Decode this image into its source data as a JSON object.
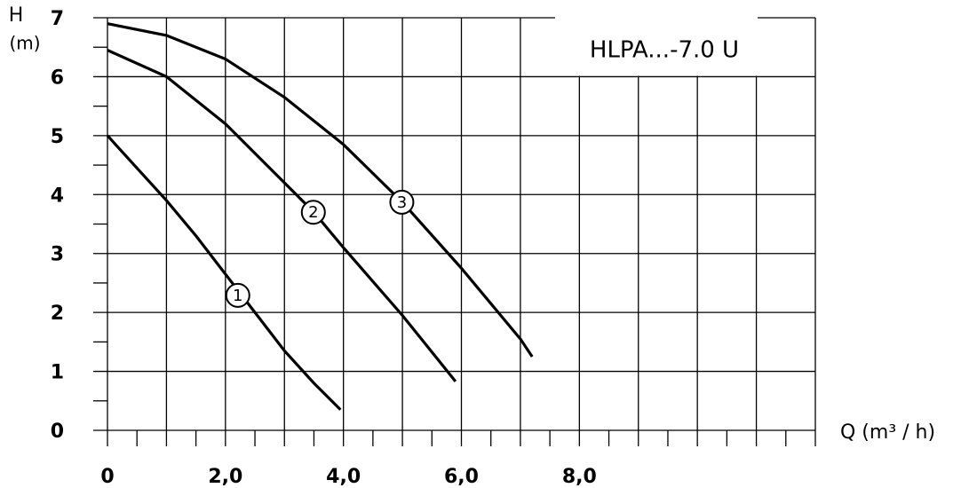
{
  "chart_data": {
    "type": "line",
    "title": "HLPA...-7.0 U",
    "y_label": "H",
    "y_unit": "(m)",
    "x_label": "Q (m³ / h)",
    "xlim": [
      0,
      12
    ],
    "ylim": [
      0,
      7
    ],
    "xticks": [
      0,
      {
        "value": 2,
        "label": "2,0"
      },
      {
        "value": 4,
        "label": "4,0"
      },
      {
        "value": 6,
        "label": "6,0"
      },
      {
        "value": 8,
        "label": "8,0"
      }
    ],
    "yticks": [
      0,
      1,
      2,
      3,
      4,
      5,
      6,
      7
    ],
    "xgrid": [
      0,
      1,
      2,
      3,
      4,
      5,
      6,
      7,
      8,
      9,
      10,
      11,
      12
    ],
    "xminor_ticks": [
      0.5,
      1.5,
      2.5,
      3.5,
      4.5,
      5.5,
      6.5,
      7.5,
      8.5,
      9.5,
      10.5,
      11.5
    ],
    "yminor_ticks": [
      0.5,
      1.5,
      2.5,
      3.5,
      4.5,
      5.5,
      6.5
    ],
    "grid": true,
    "series": [
      {
        "name": "1",
        "color": "#000000",
        "x": [
          0,
          0.5,
          1,
          1.5,
          2,
          2.5,
          3,
          3.5,
          3.95
        ],
        "values": [
          5.0,
          4.45,
          3.9,
          3.3,
          2.65,
          2.0,
          1.35,
          0.8,
          0.35
        ],
        "label_x": 2.21,
        "label_y": 2.29
      },
      {
        "name": "2",
        "color": "#000000",
        "x": [
          0,
          1,
          2,
          3,
          3.5,
          4,
          5,
          5.9
        ],
        "values": [
          6.45,
          6.0,
          5.2,
          4.2,
          3.7,
          3.1,
          1.95,
          0.83
        ],
        "label_x": 3.49,
        "label_y": 3.7
      },
      {
        "name": "3",
        "color": "#000000",
        "x": [
          0,
          1,
          2,
          3,
          4,
          5,
          6,
          7,
          7.2
        ],
        "values": [
          6.9,
          6.7,
          6.3,
          5.65,
          4.85,
          3.87,
          2.75,
          1.55,
          1.25
        ],
        "label_x": 4.99,
        "label_y": 3.87
      }
    ]
  }
}
